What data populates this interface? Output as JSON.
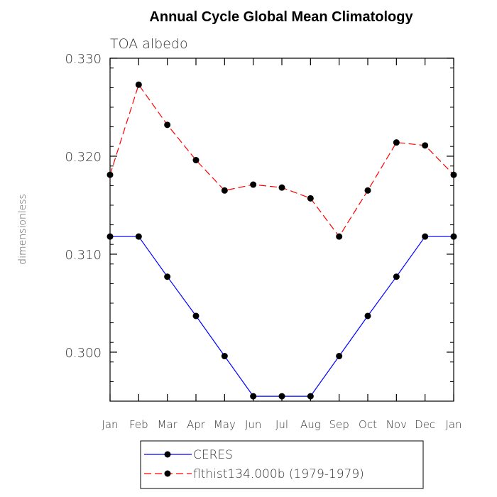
{
  "chart_data": {
    "type": "line",
    "title": "Annual Cycle Global Mean Climatology",
    "subtitle": "TOA albedo",
    "ylabel": "dimensionless",
    "xlabel": "",
    "categories": [
      "Jan",
      "Feb",
      "Mar",
      "Apr",
      "May",
      "Jun",
      "Jul",
      "Aug",
      "Sep",
      "Oct",
      "Nov",
      "Dec",
      "Jan"
    ],
    "ylim": [
      0.295,
      0.33
    ],
    "yticks": [
      0.3,
      0.31,
      0.32,
      0.33
    ],
    "ytick_labels": [
      "0.300",
      "0.310",
      "0.320",
      "0.330"
    ],
    "grid": false,
    "legend_position": "bottom",
    "series": [
      {
        "name": "CERES",
        "color": "#0000ff",
        "line_style": "solid",
        "marker": "filled-circle",
        "values": [
          0.3118,
          0.3118,
          0.3077,
          0.3037,
          0.2996,
          0.2955,
          0.2955,
          0.2955,
          0.2996,
          0.3037,
          0.3077,
          0.3118,
          0.3118
        ]
      },
      {
        "name": "flthist134.000b (1979-1979)",
        "color": "#ff0000",
        "line_style": "dashed",
        "marker": "filled-circle",
        "values": [
          0.3181,
          0.3273,
          0.3232,
          0.3196,
          0.3165,
          0.3171,
          0.3168,
          0.3157,
          0.3118,
          0.3165,
          0.3214,
          0.3211,
          0.3181
        ]
      }
    ]
  }
}
